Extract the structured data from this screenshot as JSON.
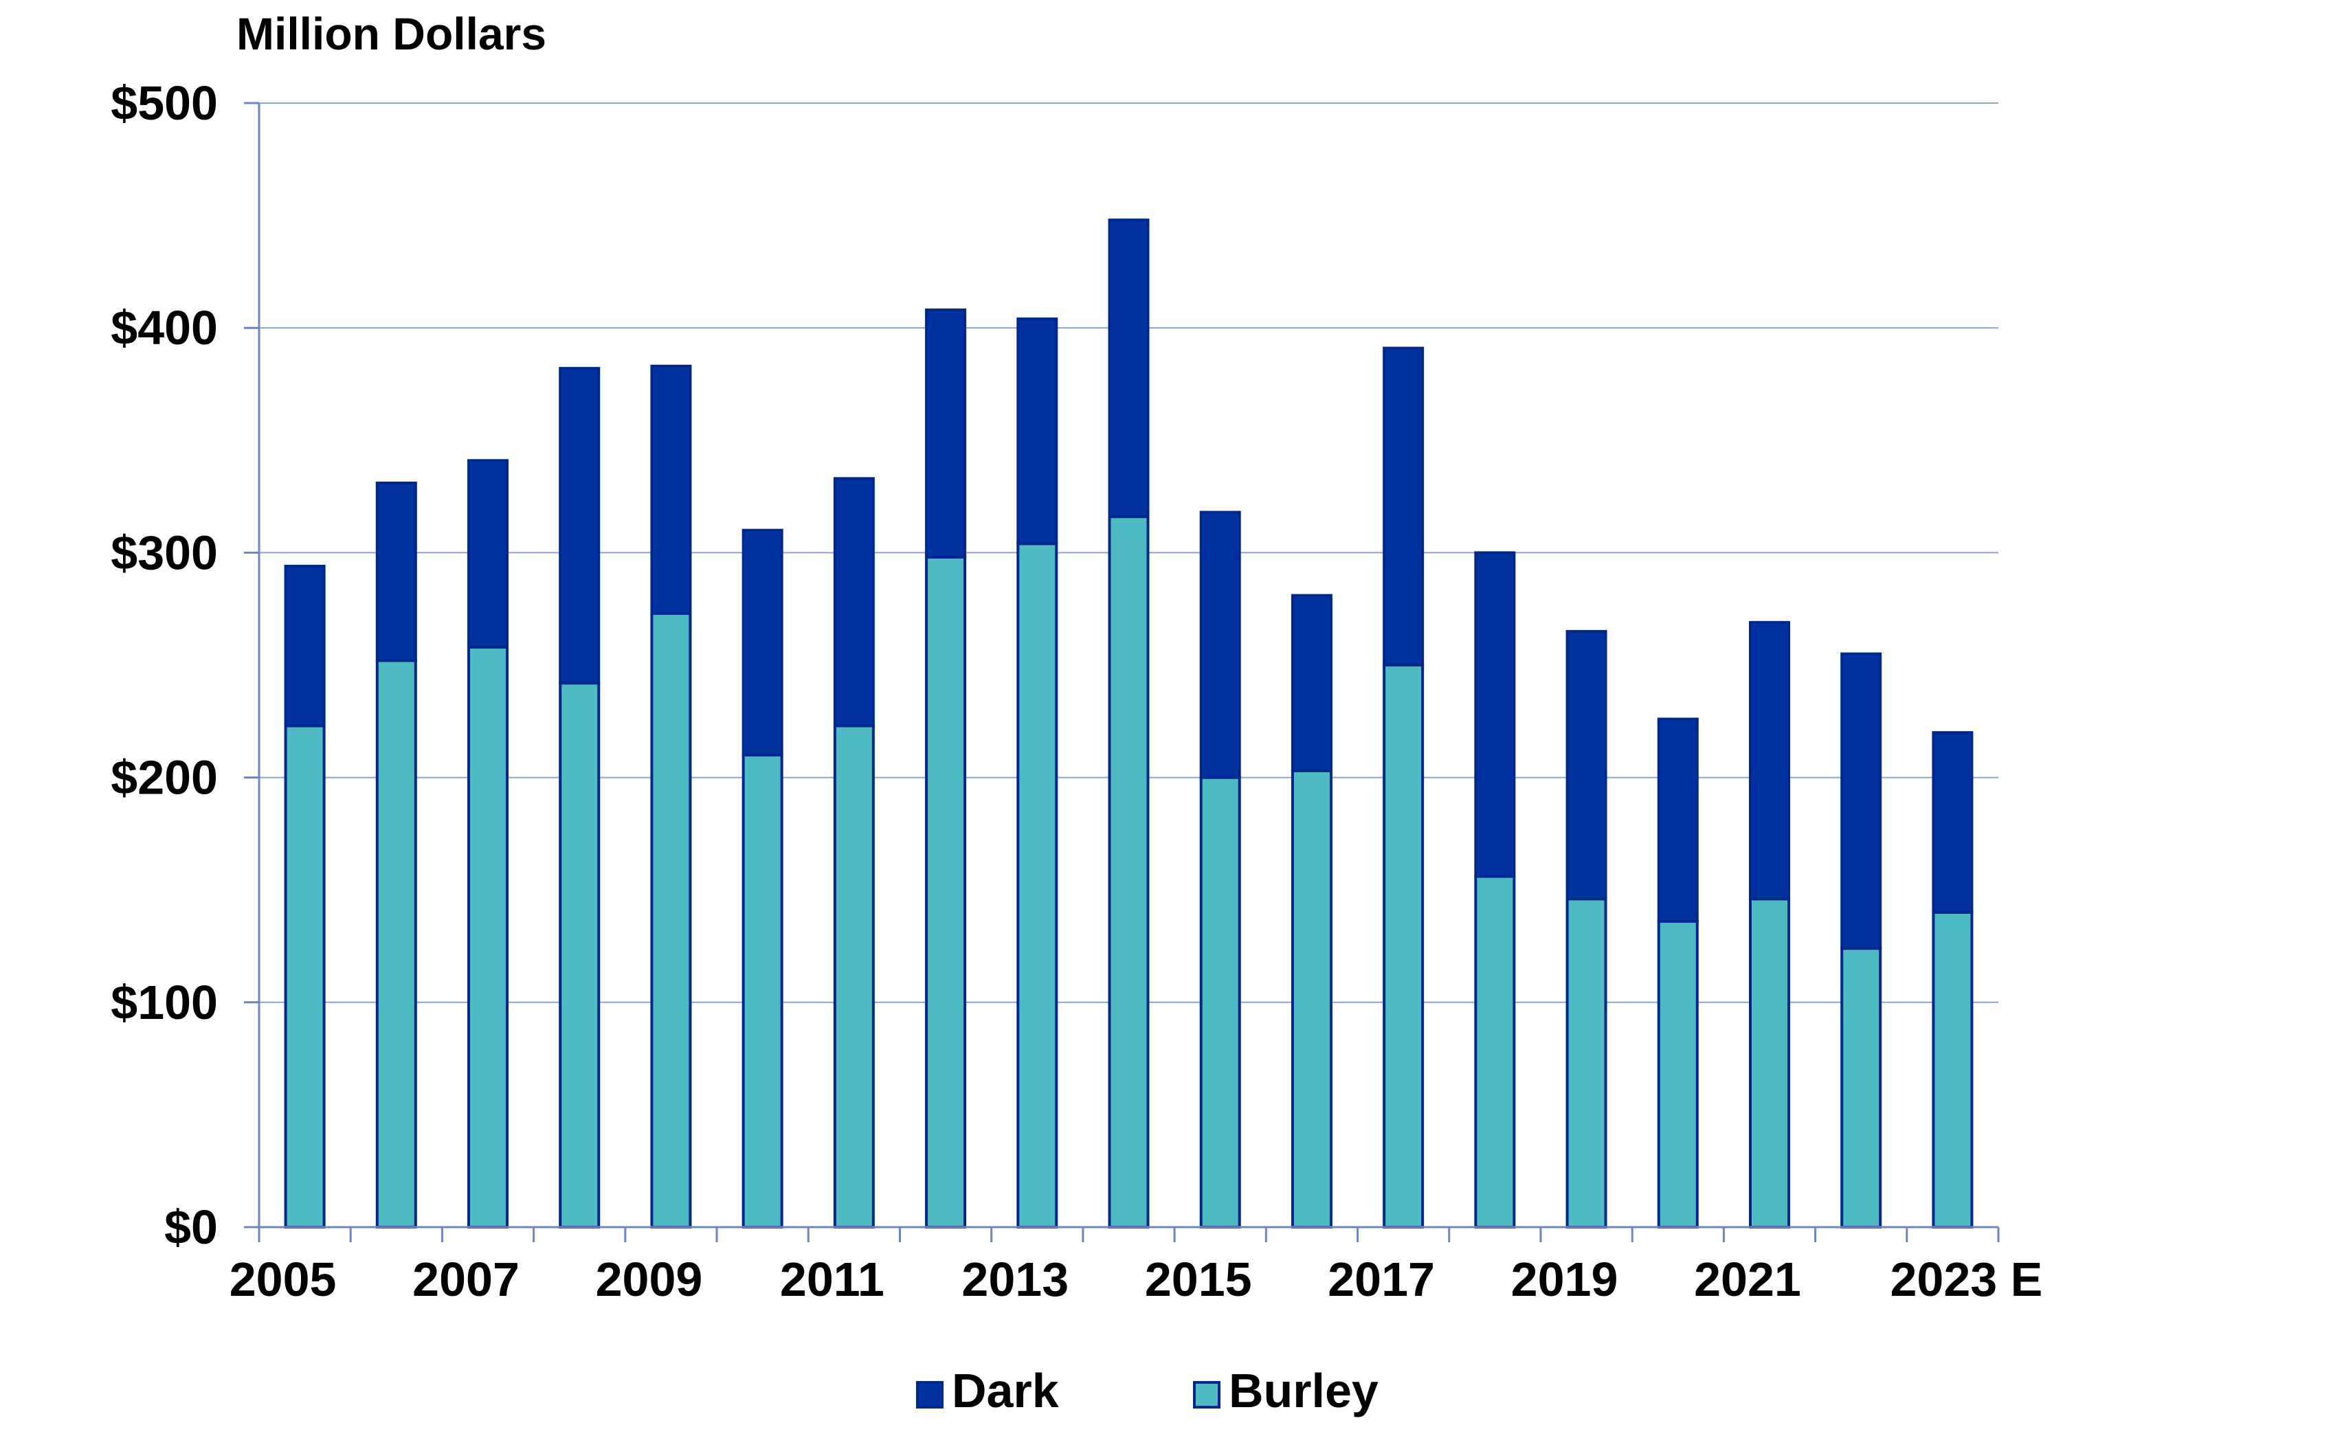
{
  "chart_data": {
    "type": "bar",
    "stacked": true,
    "title": "",
    "ylabel": "Million Dollars",
    "xlabel": "",
    "ylim": [
      0,
      500
    ],
    "yticks": [
      0,
      100,
      200,
      300,
      400,
      500
    ],
    "ytick_labels": [
      "$0",
      "$100",
      "$200",
      "$300",
      "$400",
      "$500"
    ],
    "categories": [
      "2005",
      "2006",
      "2007",
      "2008",
      "2009",
      "2010",
      "2011",
      "2012",
      "2013",
      "2014",
      "2015",
      "2016",
      "2017",
      "2018",
      "2019",
      "2020",
      "2021",
      "2022",
      "2023 E"
    ],
    "xtick_labels": [
      "2005",
      "",
      "2007",
      "",
      "2009",
      "",
      "2011",
      "",
      "2013",
      "",
      "2015",
      "",
      "2017",
      "",
      "2019",
      "",
      "2021",
      "",
      "2023 E"
    ],
    "series": [
      {
        "name": "Burley",
        "color": "#4DBBC1",
        "values": [
          223,
          252,
          258,
          242,
          273,
          210,
          223,
          298,
          304,
          316,
          200,
          203,
          250,
          156,
          146,
          136,
          146,
          124,
          140
        ]
      },
      {
        "name": "Dark",
        "color": "#0033A0",
        "values": [
          71,
          79,
          83,
          140,
          110,
          100,
          110,
          110,
          100,
          132,
          118,
          78,
          141,
          144,
          119,
          90,
          123,
          131,
          80
        ]
      }
    ],
    "legend": {
      "position": "bottom-center",
      "order": [
        "Dark",
        "Burley"
      ]
    },
    "grid": true,
    "grid_color": "#8FA3CC",
    "axis_color": "#6F86BF",
    "bar_stroke": "#00288C"
  }
}
